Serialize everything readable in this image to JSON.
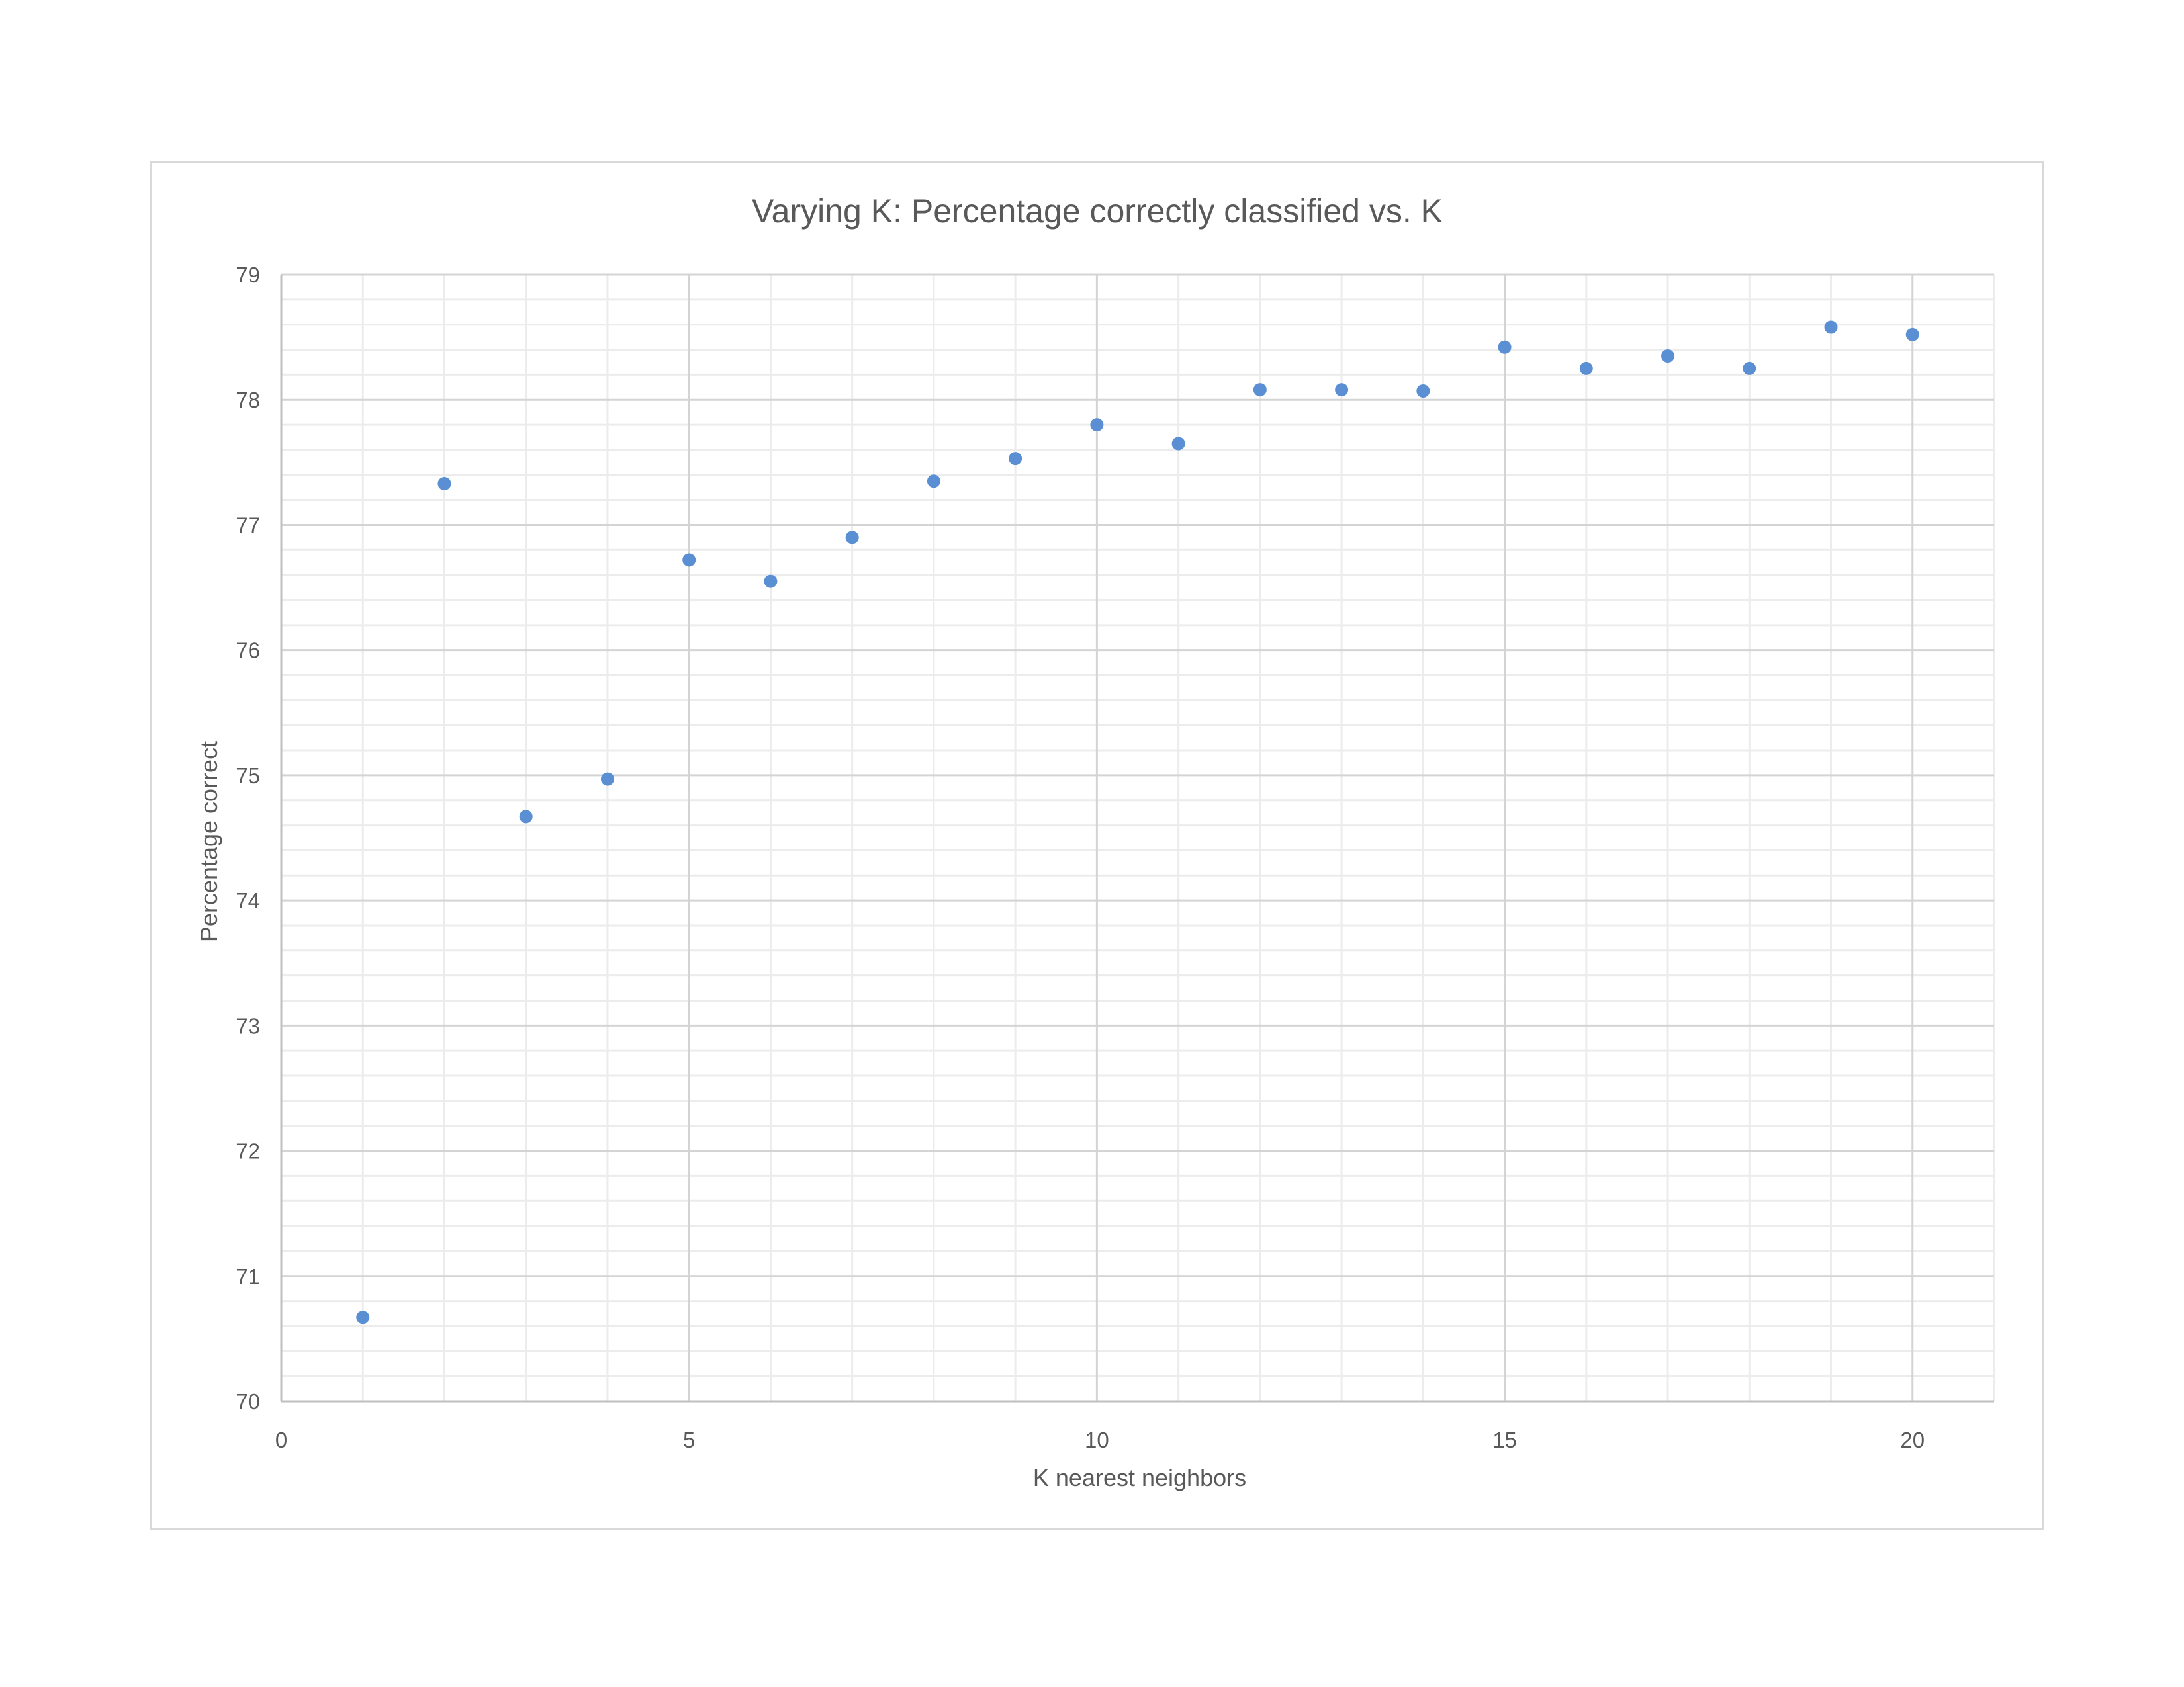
{
  "chart_data": {
    "type": "scatter",
    "title": "Varying K: Percentage correctly classified vs. K",
    "xlabel": "K nearest neighbors",
    "ylabel": "Percentage correct",
    "xlim": [
      0,
      21
    ],
    "ylim": [
      70,
      79
    ],
    "x_ticks": [
      0,
      5,
      10,
      15,
      20
    ],
    "y_ticks": [
      70,
      71,
      72,
      73,
      74,
      75,
      76,
      77,
      78,
      79
    ],
    "x_minor_step": 1,
    "y_minor_step": 0.2,
    "grid": true,
    "legend": "none",
    "marker_color": "#5b8fd4",
    "series": [
      {
        "x": [
          1,
          2,
          3,
          4,
          5,
          6,
          7,
          8,
          9,
          10,
          11,
          12,
          13,
          14,
          15,
          16,
          17,
          18,
          19,
          20
        ],
        "y": [
          70.67,
          77.33,
          74.67,
          74.97,
          76.72,
          76.55,
          76.9,
          77.35,
          77.53,
          77.8,
          77.65,
          78.08,
          78.08,
          78.07,
          78.42,
          78.25,
          78.35,
          78.25,
          78.58,
          78.52
        ]
      }
    ]
  }
}
